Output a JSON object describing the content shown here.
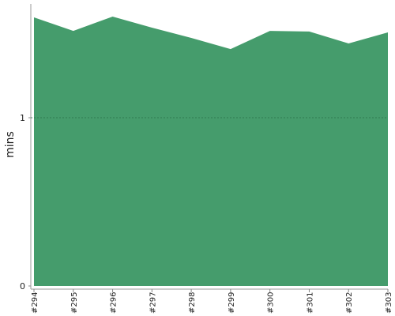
{
  "chart_data": {
    "type": "area",
    "y_label": "mins",
    "categories": [
      "#294",
      "#295",
      "#296",
      "#297",
      "#298",
      "#299",
      "#300",
      "#301",
      "#302",
      "#303"
    ],
    "values": [
      1.596,
      1.516,
      1.601,
      1.535,
      1.474,
      1.408,
      1.516,
      1.512,
      1.441,
      1.507
    ],
    "color": "#459c6c",
    "ylim": [
      0,
      1.676
    ],
    "yticks": [
      0,
      1
    ],
    "grid": true
  }
}
